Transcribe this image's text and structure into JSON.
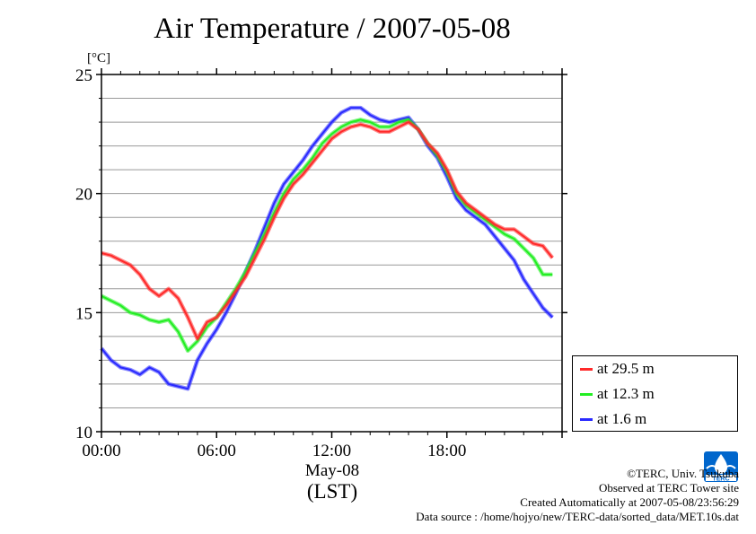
{
  "chart_data": {
    "type": "line",
    "title": "Air Temperature / 2007-05-08",
    "ylabel": "[°C]",
    "xlabel": "May-08",
    "xlabel2": "(LST)",
    "ylim": [
      10,
      25
    ],
    "yticks": [
      "10",
      "15",
      "20",
      "25"
    ],
    "xlim": [
      "00:00",
      "24:00"
    ],
    "xticks": [
      "00:00",
      "06:00",
      "12:00",
      "18:00"
    ],
    "legend_position": "bottom-right outside",
    "grid": true,
    "series": [
      {
        "name": "at 29.5 m",
        "color": "#ff2a2a",
        "x": [
          "00:00",
          "00:30",
          "01:00",
          "01:30",
          "02:00",
          "02:30",
          "03:00",
          "03:30",
          "04:00",
          "04:30",
          "05:00",
          "05:30",
          "06:00",
          "06:30",
          "07:00",
          "07:30",
          "08:00",
          "08:30",
          "09:00",
          "09:30",
          "10:00",
          "10:30",
          "11:00",
          "11:30",
          "12:00",
          "12:30",
          "13:00",
          "13:30",
          "14:00",
          "14:30",
          "15:00",
          "15:30",
          "16:00",
          "16:30",
          "17:00",
          "17:30",
          "18:00",
          "18:30",
          "19:00",
          "19:30",
          "20:00",
          "20:30",
          "21:00",
          "21:30",
          "22:00",
          "22:30",
          "23:00",
          "23:30"
        ],
        "values": [
          17.5,
          17.4,
          17.2,
          17.0,
          16.6,
          16.0,
          15.7,
          16.0,
          15.6,
          14.8,
          13.9,
          14.6,
          14.8,
          15.3,
          15.9,
          16.5,
          17.3,
          18.1,
          19.0,
          19.8,
          20.4,
          20.8,
          21.3,
          21.8,
          22.3,
          22.6,
          22.8,
          22.9,
          22.8,
          22.6,
          22.6,
          22.8,
          23.0,
          22.7,
          22.1,
          21.7,
          21.0,
          20.1,
          19.6,
          19.3,
          19.0,
          18.7,
          18.5,
          18.5,
          18.2,
          17.9,
          17.8,
          17.3
        ]
      },
      {
        "name": "at 12.3 m",
        "color": "#22ee22",
        "x": [
          "00:00",
          "00:30",
          "01:00",
          "01:30",
          "02:00",
          "02:30",
          "03:00",
          "03:30",
          "04:00",
          "04:30",
          "05:00",
          "05:30",
          "06:00",
          "06:30",
          "07:00",
          "07:30",
          "08:00",
          "08:30",
          "09:00",
          "09:30",
          "10:00",
          "10:30",
          "11:00",
          "11:30",
          "12:00",
          "12:30",
          "13:00",
          "13:30",
          "14:00",
          "14:30",
          "15:00",
          "15:30",
          "16:00",
          "16:30",
          "17:00",
          "17:30",
          "18:00",
          "18:30",
          "19:00",
          "19:30",
          "20:00",
          "20:30",
          "21:00",
          "21:30",
          "22:00",
          "22:30",
          "23:00",
          "23:30"
        ],
        "values": [
          15.7,
          15.5,
          15.3,
          15.0,
          14.9,
          14.7,
          14.6,
          14.7,
          14.2,
          13.4,
          13.8,
          14.4,
          14.8,
          15.4,
          16.0,
          16.7,
          17.5,
          18.3,
          19.2,
          20.0,
          20.6,
          21.0,
          21.5,
          22.1,
          22.5,
          22.8,
          23.0,
          23.1,
          23.0,
          22.8,
          22.8,
          23.0,
          23.1,
          22.7,
          22.1,
          21.6,
          20.9,
          20.0,
          19.5,
          19.2,
          18.9,
          18.6,
          18.3,
          18.1,
          17.7,
          17.3,
          16.6,
          16.6
        ]
      },
      {
        "name": "at 1.6 m",
        "color": "#2a2aff",
        "x": [
          "00:00",
          "00:30",
          "01:00",
          "01:30",
          "02:00",
          "02:30",
          "03:00",
          "03:30",
          "04:00",
          "04:30",
          "05:00",
          "05:30",
          "06:00",
          "06:30",
          "07:00",
          "07:30",
          "08:00",
          "08:30",
          "09:00",
          "09:30",
          "10:00",
          "10:30",
          "11:00",
          "11:30",
          "12:00",
          "12:30",
          "13:00",
          "13:30",
          "14:00",
          "14:30",
          "15:00",
          "15:30",
          "16:00",
          "16:30",
          "17:00",
          "17:30",
          "18:00",
          "18:30",
          "19:00",
          "19:30",
          "20:00",
          "20:30",
          "21:00",
          "21:30",
          "22:00",
          "22:30",
          "23:00",
          "23:30"
        ],
        "values": [
          13.5,
          13.0,
          12.7,
          12.6,
          12.4,
          12.7,
          12.5,
          12.0,
          11.9,
          11.8,
          13.0,
          13.7,
          14.3,
          15.0,
          15.8,
          16.7,
          17.6,
          18.6,
          19.6,
          20.4,
          20.9,
          21.4,
          22.0,
          22.5,
          23.0,
          23.4,
          23.6,
          23.6,
          23.3,
          23.1,
          23.0,
          23.1,
          23.2,
          22.7,
          22.0,
          21.5,
          20.7,
          19.8,
          19.3,
          19.0,
          18.7,
          18.2,
          17.7,
          17.2,
          16.4,
          15.8,
          15.2,
          14.8
        ]
      }
    ]
  },
  "footer": {
    "copyright": "©TERC, Univ. Tsukuba",
    "site": "Observed at TERC Tower site",
    "created": "Created Automatically at 2007-05-08/23:56:29",
    "source": "Data source : /home/hojyo/new/TERC-data/sorted_data/MET.10s.dat"
  },
  "logo": {
    "icon": "terc-logo",
    "text": "TERC",
    "color": "#0066cc"
  }
}
